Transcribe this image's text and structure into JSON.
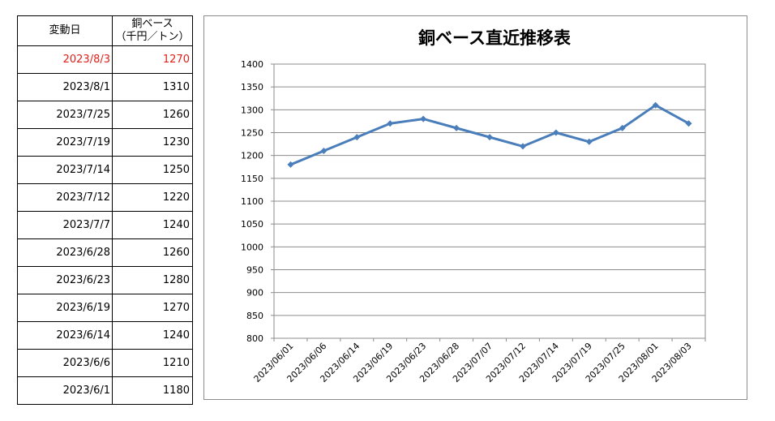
{
  "table": {
    "header_date": "変動日",
    "header_value_line1": "銅ベース",
    "header_value_line2": "（千円／トン）",
    "rows": [
      {
        "date": "2023/8/3",
        "value": "1270"
      },
      {
        "date": "2023/8/1",
        "value": "1310"
      },
      {
        "date": "2023/7/25",
        "value": "1260"
      },
      {
        "date": "2023/7/19",
        "value": "1230"
      },
      {
        "date": "2023/7/14",
        "value": "1250"
      },
      {
        "date": "2023/7/12",
        "value": "1220"
      },
      {
        "date": "2023/7/7",
        "value": "1240"
      },
      {
        "date": "2023/6/28",
        "value": "1260"
      },
      {
        "date": "2023/6/23",
        "value": "1280"
      },
      {
        "date": "2023/6/19",
        "value": "1270"
      },
      {
        "date": "2023/6/14",
        "value": "1240"
      },
      {
        "date": "2023/6/6",
        "value": "1210"
      },
      {
        "date": "2023/6/1",
        "value": "1180"
      }
    ],
    "highlight_color": "#e0201b"
  },
  "chart_data": {
    "type": "line",
    "title": "銅ベース直近推移表",
    "categories": [
      "2023/06/01",
      "2023/06/06",
      "2023/06/14",
      "2023/06/19",
      "2023/06/23",
      "2023/06/28",
      "2023/07/07",
      "2023/07/12",
      "2023/07/14",
      "2023/07/19",
      "2023/07/25",
      "2023/08/01",
      "2023/08/03"
    ],
    "series": [
      {
        "values": [
          1180,
          1210,
          1240,
          1270,
          1280,
          1260,
          1240,
          1220,
          1250,
          1230,
          1260,
          1310,
          1270
        ],
        "color": "#4a7ebb"
      }
    ],
    "ylim": [
      800,
      1400
    ],
    "yticks": [
      800,
      850,
      900,
      950,
      1000,
      1050,
      1100,
      1150,
      1200,
      1250,
      1300,
      1350,
      1400
    ],
    "grid": true,
    "legend": "none"
  }
}
